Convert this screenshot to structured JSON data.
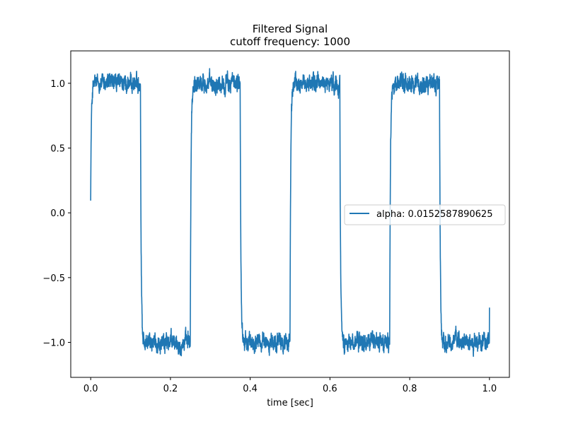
{
  "chart_data": {
    "type": "line",
    "title": "Filtered Signal",
    "subtitle": "cutoff frequency: 1000",
    "xlabel": "time [sec]",
    "ylabel": "",
    "xlim": [
      -0.05,
      1.05
    ],
    "ylim": [
      -1.27,
      1.25
    ],
    "xticks": [
      0.0,
      0.2,
      0.4,
      0.6,
      0.8,
      1.0
    ],
    "xtick_labels": [
      "0.0",
      "0.2",
      "0.4",
      "0.6",
      "0.8",
      "1.0"
    ],
    "yticks": [
      -1.0,
      -0.5,
      0.0,
      0.5,
      1.0
    ],
    "ytick_labels": [
      "−1.0",
      "−0.5",
      "0.0",
      "0.5",
      "1.0"
    ],
    "grid": false,
    "legend_position": "center-right",
    "series": [
      {
        "name": "alpha: 0.0152587890625",
        "color": "#1f77b4",
        "description_values": {
          "square_wave_period": 0.25,
          "high_level": 1.0,
          "low_level": -1.0,
          "transitions": [
            0.125,
            0.25,
            0.375,
            0.5,
            0.625,
            0.75,
            0.875
          ],
          "start": [
            0.0,
            0.03
          ],
          "end": 1.0,
          "noise_amplitude": 0.08
        }
      }
    ]
  }
}
